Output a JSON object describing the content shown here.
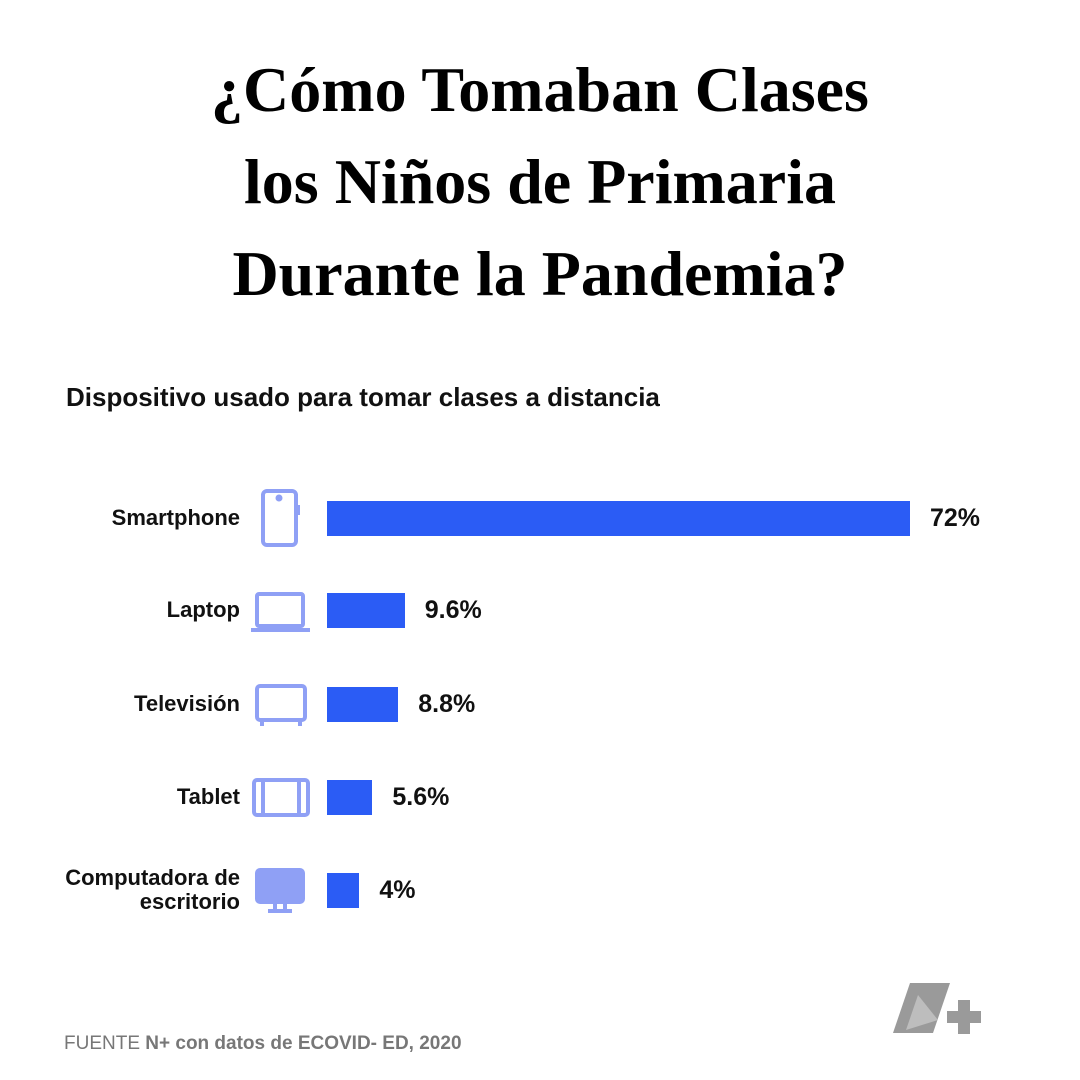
{
  "chart_data": {
    "type": "bar",
    "orientation": "horizontal",
    "title": "¿Cómo Tomaban Clases los Niños de Primaria Durante la Pandemia?",
    "subtitle": "Dispositivo usado para tomar clases a distancia",
    "categories": [
      "Smartphone",
      "Laptop",
      "Televisión",
      "Tablet",
      "Computadora de escritorio"
    ],
    "values": [
      72,
      9.6,
      8.8,
      5.6,
      4
    ],
    "value_labels": [
      "72%",
      "9.6%",
      "8.8%",
      "5.6%",
      "4%"
    ],
    "color": "#2b5cf5",
    "source": {
      "label": "FUENTE",
      "text": "N+ con datos de ECOVID- ED, 2020"
    }
  }
}
